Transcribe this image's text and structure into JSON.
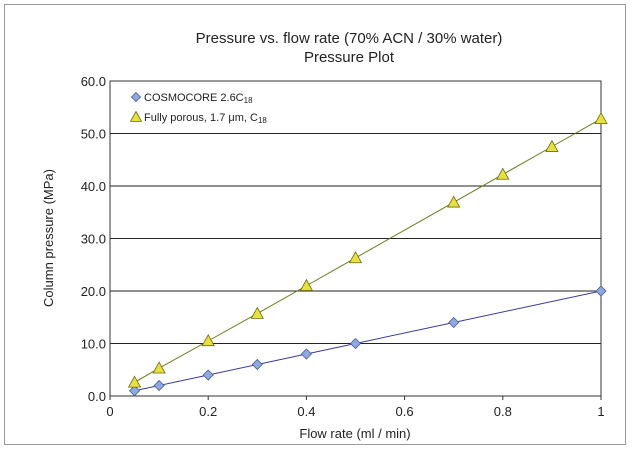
{
  "chart_data": {
    "type": "scatter",
    "title": "Pressure vs. flow rate (70% ACN / 30% water)",
    "subtitle": "Pressure Plot",
    "xlabel": "Flow rate (ml / min)",
    "ylabel": "Column pressure (MPa)",
    "xlim": [
      0,
      1
    ],
    "ylim": [
      0,
      60
    ],
    "x_ticks": [
      "0",
      "0.2",
      "0.4",
      "0.6",
      "0.8",
      "1"
    ],
    "y_ticks": [
      "0.0",
      "10.0",
      "20.0",
      "30.0",
      "40.0",
      "50.0",
      "60.0"
    ],
    "grid": "horizontal",
    "legend_position": "top-left",
    "series": [
      {
        "name": "COSMOCORE 2.6C",
        "name_subscript": "18",
        "marker": "diamond",
        "color": "#8ea9db",
        "line_color": "#3b3b9c",
        "x": [
          0.05,
          0.1,
          0.2,
          0.3,
          0.4,
          0.5,
          0.7,
          1.0
        ],
        "y": [
          1.0,
          2.0,
          4.0,
          6.0,
          8.0,
          10.0,
          14.0,
          20.0
        ]
      },
      {
        "name": "Fully porous, 1.7 μm, C",
        "name_subscript": "18",
        "marker": "triangle",
        "color": "#e8e040",
        "line_color": "#6b7a1a",
        "x": [
          0.05,
          0.1,
          0.2,
          0.3,
          0.4,
          0.5,
          0.7,
          0.8,
          0.9,
          1.0
        ],
        "y": [
          2.6,
          5.3,
          10.5,
          15.7,
          21.0,
          26.3,
          36.9,
          42.2,
          47.5,
          52.8
        ]
      }
    ]
  }
}
